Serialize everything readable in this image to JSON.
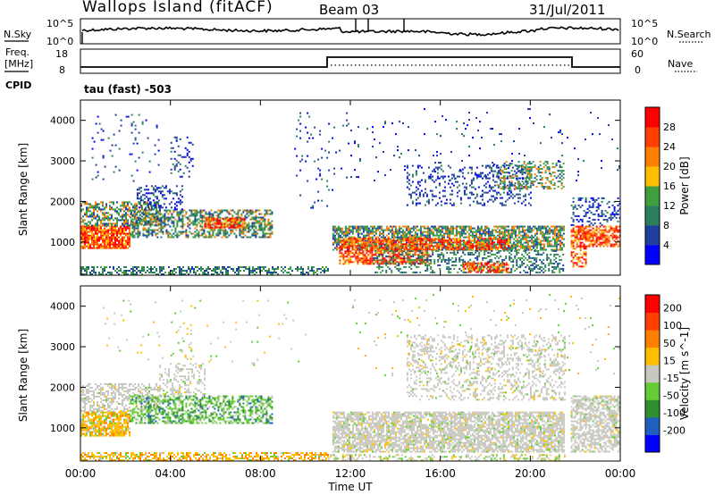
{
  "header": {
    "station": "Wallops Island (fitACF)",
    "beam": "Beam 03",
    "date": "31/Jul/2011"
  },
  "panels": {
    "nsky": {
      "label": "N.Sky",
      "right_label": "N.Search",
      "left_ticks": [
        "10^5",
        "10^0"
      ],
      "right_ticks": [
        "10^5",
        "10^0"
      ]
    },
    "freq": {
      "label_line1": "Freq.",
      "label_line2": "[MHz]",
      "right_label": "Nave",
      "left_ticks": [
        "18",
        "8"
      ],
      "right_ticks": [
        "60",
        "0"
      ]
    },
    "cpid": {
      "label": "CPID",
      "program": "tau (fast) -503"
    }
  },
  "colors": {
    "power": [
      "#0000ff",
      "#1f3fa0",
      "#2b7f5f",
      "#3f9f3f",
      "#ffbf00",
      "#ff7f00",
      "#ff3f00",
      "#ff0000"
    ],
    "velocity": [
      "#0000ff",
      "#1f5fbf",
      "#2f8f2f",
      "#66cc33",
      "#c8c8c0",
      "#ffbf00",
      "#ff8000",
      "#ff4000",
      "#ff0000"
    ],
    "ground_scatter": "#c8c8c0"
  },
  "chart_data": [
    {
      "type": "heatmap",
      "name": "power",
      "ylabel": "Slant Range [km]",
      "xlabel": "",
      "yticks": [
        1000,
        2000,
        3000,
        4000
      ],
      "ylim": [
        180,
        4500
      ],
      "xlim_hours": [
        0,
        24
      ],
      "colorbar": {
        "label": "Power [dB]",
        "ticks": [
          "28",
          "24",
          "20",
          "16",
          "12",
          "8",
          "4"
        ],
        "range": [
          0,
          32
        ]
      }
    },
    {
      "type": "heatmap",
      "name": "velocity",
      "ylabel": "Slant Range [km]",
      "xlabel": "Time UT",
      "xticks": [
        "00:00",
        "04:00",
        "08:00",
        "12:00",
        "16:00",
        "20:00",
        "00:00"
      ],
      "yticks": [
        1000,
        2000,
        3000,
        4000
      ],
      "ylim": [
        180,
        4500
      ],
      "xlim_hours": [
        0,
        24
      ],
      "colorbar": {
        "label": "Velocity [m s^-1]",
        "ticks": [
          "200",
          "100",
          "50",
          "15",
          "-15",
          "-50",
          "-100",
          "-200"
        ],
        "range": [
          -250,
          250
        ]
      }
    }
  ]
}
